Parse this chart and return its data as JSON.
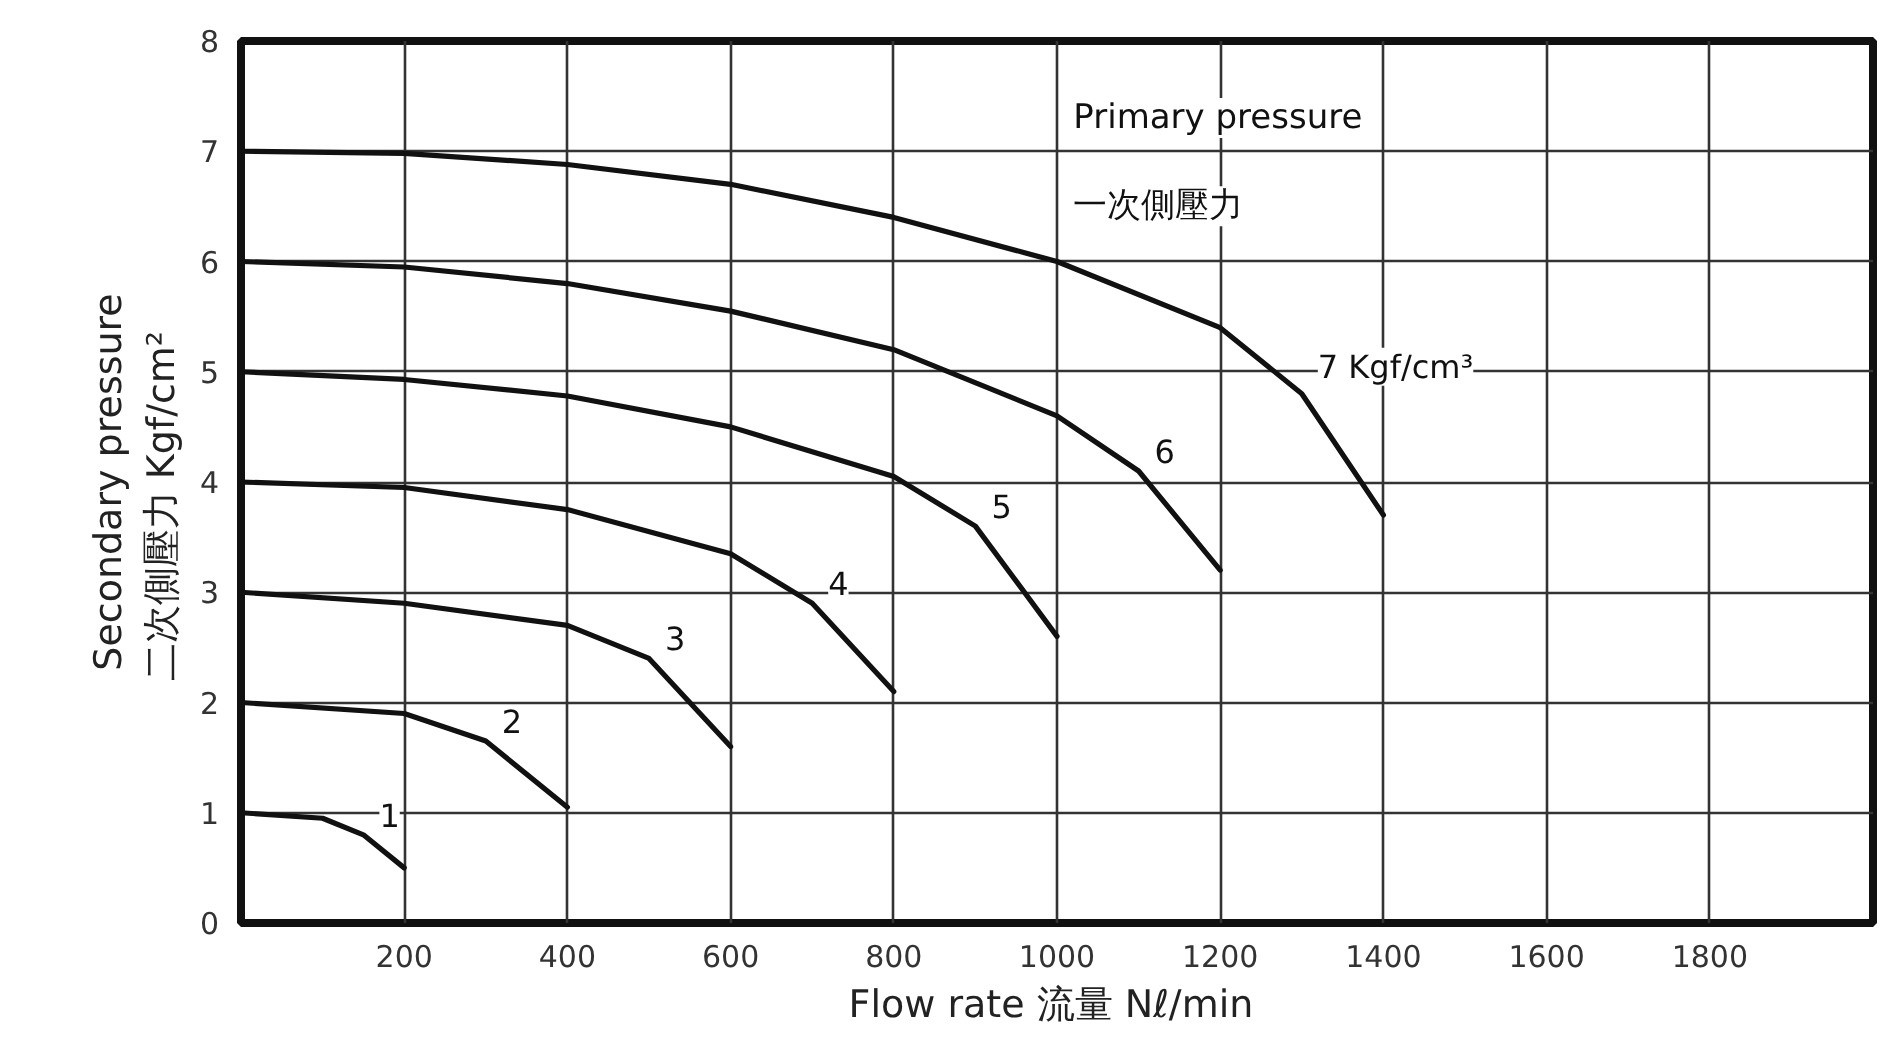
{
  "chart_data": {
    "type": "line",
    "xlabel": "Flow rate 流量  Nℓ/min",
    "ylabel": "Secondary pressure\n二次側壓力     Kgf/cm²",
    "xlim": [
      0,
      2000
    ],
    "ylim": [
      0,
      8
    ],
    "xticks": [
      200,
      400,
      600,
      800,
      1000,
      1200,
      1400,
      1600,
      1800
    ],
    "yticks": [
      0,
      1,
      2,
      3,
      4,
      5,
      6,
      7,
      8
    ],
    "grid": true,
    "marker": "none",
    "line_style": "solid",
    "series": [
      {
        "name": "1",
        "color": "#111111",
        "x": [
          0,
          100,
          150,
          200
        ],
        "values": [
          1,
          0.95,
          0.8,
          0.5
        ]
      },
      {
        "name": "2",
        "color": "#111111",
        "x": [
          0,
          200,
          300,
          400
        ],
        "values": [
          2,
          1.9,
          1.65,
          1.05
        ]
      },
      {
        "name": "3",
        "color": "#111111",
        "x": [
          0,
          200,
          400,
          500,
          600
        ],
        "values": [
          3,
          2.9,
          2.7,
          2.4,
          1.6
        ]
      },
      {
        "name": "4",
        "color": "#111111",
        "x": [
          0,
          200,
          400,
          600,
          700,
          800
        ],
        "values": [
          4,
          3.95,
          3.75,
          3.35,
          2.9,
          2.1
        ]
      },
      {
        "name": "5",
        "color": "#111111",
        "x": [
          0,
          200,
          400,
          600,
          800,
          900,
          1000
        ],
        "values": [
          5,
          4.93,
          4.78,
          4.5,
          4.05,
          3.6,
          2.6
        ]
      },
      {
        "name": "6",
        "color": "#111111",
        "x": [
          0,
          200,
          400,
          600,
          800,
          1000,
          1100,
          1200
        ],
        "values": [
          6,
          5.95,
          5.8,
          5.55,
          5.2,
          4.6,
          4.1,
          3.2
        ]
      },
      {
        "name": "7 Kgf/cm³",
        "color": "#111111",
        "x": [
          0,
          200,
          400,
          600,
          800,
          1000,
          1200,
          1300,
          1400
        ],
        "values": [
          7,
          6.98,
          6.88,
          6.7,
          6.4,
          6.0,
          5.4,
          4.8,
          3.7
        ]
      }
    ],
    "annotations": [
      "Primary pressure",
      "一次側壓力"
    ]
  }
}
